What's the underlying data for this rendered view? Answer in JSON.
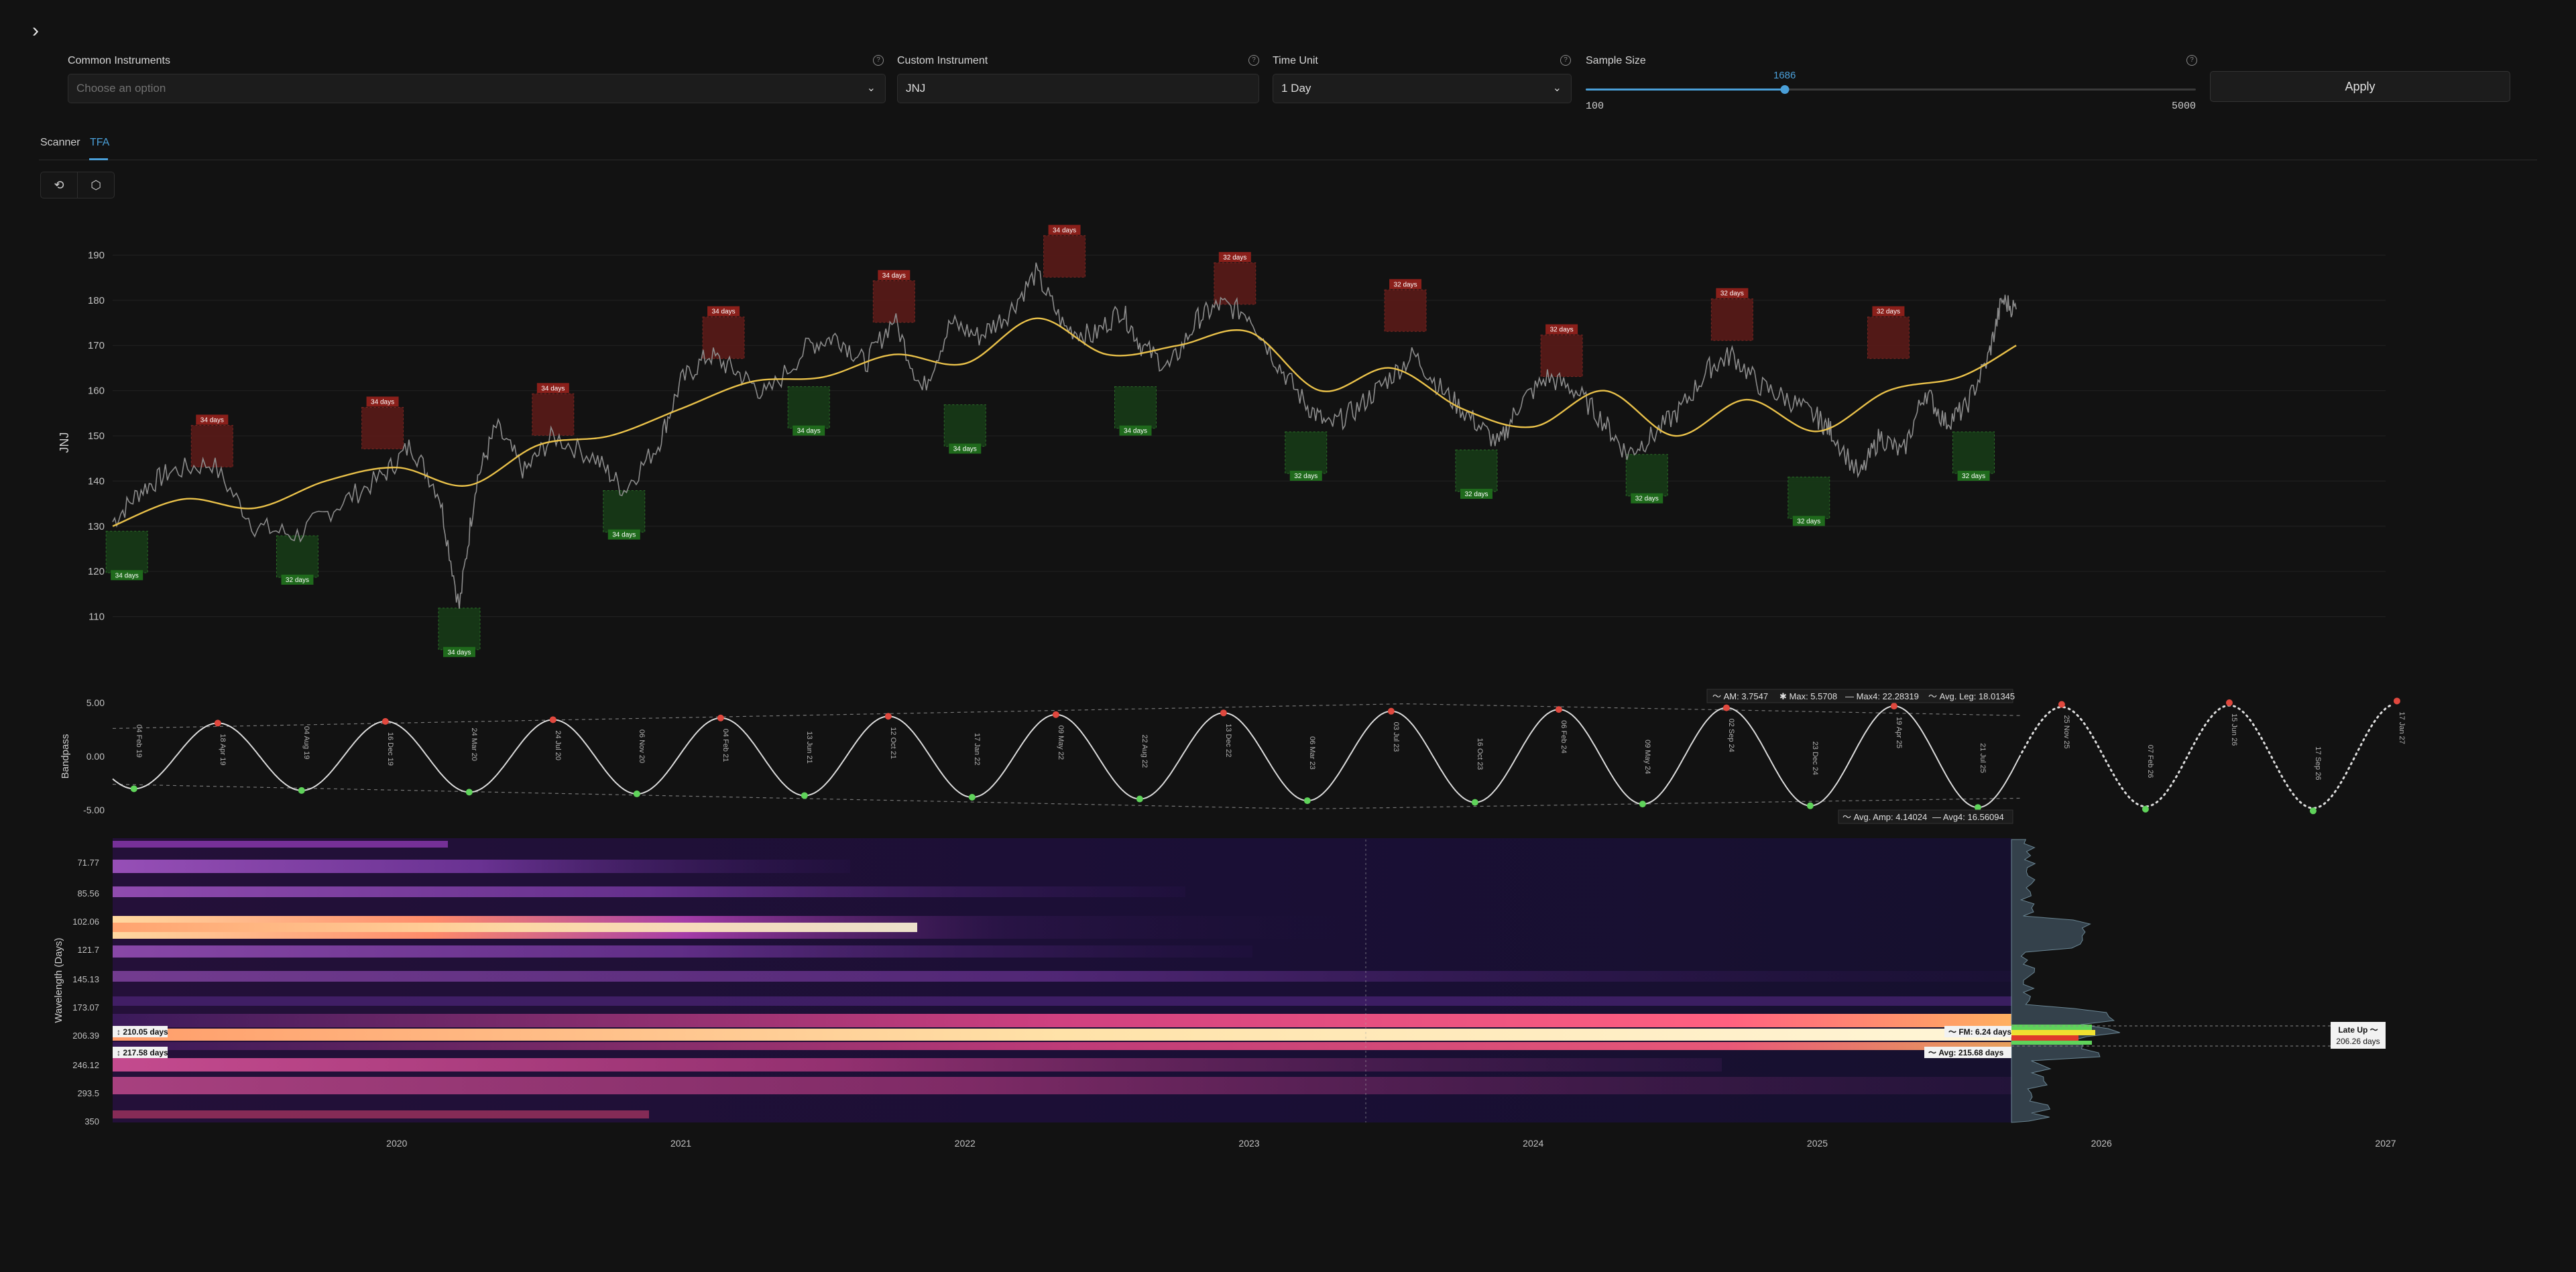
{
  "controls": {
    "common_instruments": {
      "label": "Common Instruments",
      "placeholder": "Choose an option"
    },
    "custom_instrument": {
      "label": "Custom Instrument",
      "value": "JNJ"
    },
    "time_unit": {
      "label": "Time Unit",
      "value": "1 Day"
    },
    "sample_size": {
      "label": "Sample Size",
      "value": "1686",
      "min": "100",
      "max": "5000",
      "fraction": 0.326
    },
    "apply_label": "Apply",
    "help_glyph": "?"
  },
  "tabs": [
    {
      "label": "Scanner",
      "active": false
    },
    {
      "label": "TFA",
      "active": true
    }
  ],
  "toolbar": [
    "refresh-icon",
    "cube-icon"
  ],
  "colors": {
    "accent": "#4a9fd8",
    "price": "#8c8c8c",
    "composite": "#e9c14a",
    "peak": "#e0483e",
    "trough": "#5fd35a",
    "background": "#121212"
  },
  "price_chart": {
    "ylabel": "JNJ",
    "y_ticks": [
      "190",
      "180",
      "170",
      "160",
      "150",
      "140",
      "130",
      "120",
      "110"
    ],
    "y_range": [
      104,
      196
    ],
    "x_range": [
      2019.0,
      2027.0
    ],
    "price_series": {
      "x": [
        2019.0,
        2019.1,
        2019.2,
        2019.35,
        2019.5,
        2019.65,
        2019.8,
        2019.95,
        2020.05,
        2020.15,
        2020.22,
        2020.28,
        2020.35,
        2020.45,
        2020.55,
        2020.7,
        2020.8,
        2020.92,
        2021.0,
        2021.1,
        2021.2,
        2021.3,
        2021.45,
        2021.55,
        2021.65,
        2021.75,
        2021.85,
        2021.95,
        2022.05,
        2022.15,
        2022.25,
        2022.35,
        2022.45,
        2022.55,
        2022.62,
        2022.72,
        2022.82,
        2022.9,
        2023.0,
        2023.1,
        2023.2,
        2023.28,
        2023.38,
        2023.48,
        2023.58,
        2023.68,
        2023.78,
        2023.88,
        2023.95,
        2024.05,
        2024.15,
        2024.25,
        2024.33,
        2024.42,
        2024.52,
        2024.62,
        2024.7,
        2024.8,
        2024.9,
        2025.0,
        2025.05,
        2025.15,
        2025.22,
        2025.3,
        2025.38,
        2025.45,
        2025.52,
        2025.6,
        2025.65,
        2025.7
      ],
      "y": [
        131,
        138,
        142,
        144,
        130,
        128,
        135,
        141,
        148,
        137,
        112,
        140,
        152,
        142,
        150,
        145,
        138,
        148,
        162,
        168,
        164,
        159,
        170,
        172,
        166,
        176,
        160,
        175,
        172,
        177,
        186,
        174,
        172,
        178,
        170,
        165,
        176,
        179,
        177,
        166,
        157,
        152,
        156,
        162,
        168,
        160,
        154,
        148,
        157,
        163,
        160,
        153,
        146,
        150,
        156,
        165,
        168,
        161,
        158,
        154,
        151,
        141,
        150,
        146,
        160,
        153,
        156,
        167,
        180,
        178
      ]
    },
    "composite": {
      "x": [
        2019.0,
        2019.25,
        2019.5,
        2019.75,
        2020.0,
        2020.25,
        2020.5,
        2020.75,
        2021.0,
        2021.25,
        2021.5,
        2021.75,
        2022.0,
        2022.25,
        2022.5,
        2022.75,
        2023.0,
        2023.25,
        2023.5,
        2023.75,
        2024.0,
        2024.25,
        2024.5,
        2024.75,
        2025.0,
        2025.25,
        2025.5,
        2025.7
      ],
      "y": [
        130,
        136,
        134,
        140,
        143,
        139,
        148,
        150,
        156,
        162,
        163,
        168,
        166,
        176,
        168,
        170,
        173,
        160,
        165,
        156,
        152,
        160,
        150,
        158,
        151,
        160,
        163,
        170
      ]
    },
    "cycle_markers": [
      {
        "type": "peak",
        "x": 2019.35,
        "y": 144,
        "label": "34 days"
      },
      {
        "type": "trough",
        "x": 2019.05,
        "y": 128,
        "label": "34 days"
      },
      {
        "type": "trough",
        "x": 2019.65,
        "y": 127,
        "label": "32 days"
      },
      {
        "type": "peak",
        "x": 2019.95,
        "y": 148,
        "label": "34 days"
      },
      {
        "type": "trough",
        "x": 2020.22,
        "y": 111,
        "label": "34 days"
      },
      {
        "type": "peak",
        "x": 2020.55,
        "y": 151,
        "label": "34 days"
      },
      {
        "type": "trough",
        "x": 2020.8,
        "y": 137,
        "label": "34 days"
      },
      {
        "type": "peak",
        "x": 2021.15,
        "y": 168,
        "label": "34 days"
      },
      {
        "type": "trough",
        "x": 2021.45,
        "y": 160,
        "label": "34 days"
      },
      {
        "type": "peak",
        "x": 2021.75,
        "y": 176,
        "label": "34 days"
      },
      {
        "type": "trough",
        "x": 2022.0,
        "y": 156,
        "label": "34 days"
      },
      {
        "type": "peak",
        "x": 2022.35,
        "y": 186,
        "label": "34 days"
      },
      {
        "type": "trough",
        "x": 2022.6,
        "y": 160,
        "label": "34 days"
      },
      {
        "type": "peak",
        "x": 2022.95,
        "y": 180,
        "label": "32 days"
      },
      {
        "type": "trough",
        "x": 2023.2,
        "y": 150,
        "label": "32 days"
      },
      {
        "type": "peak",
        "x": 2023.55,
        "y": 174,
        "label": "32 days"
      },
      {
        "type": "trough",
        "x": 2023.8,
        "y": 146,
        "label": "32 days"
      },
      {
        "type": "peak",
        "x": 2024.1,
        "y": 164,
        "label": "32 days"
      },
      {
        "type": "trough",
        "x": 2024.4,
        "y": 145,
        "label": "32 days"
      },
      {
        "type": "peak",
        "x": 2024.7,
        "y": 172,
        "label": "32 days"
      },
      {
        "type": "trough",
        "x": 2024.97,
        "y": 140,
        "label": "32 days"
      },
      {
        "type": "peak",
        "x": 2025.25,
        "y": 168,
        "label": "32 days"
      },
      {
        "type": "trough",
        "x": 2025.55,
        "y": 150,
        "label": "32 days"
      }
    ]
  },
  "bandpass": {
    "ylabel": "Bandpass",
    "y_ticks": [
      "5.00",
      "0.00",
      "-5.00"
    ],
    "wave": {
      "amplitude": 4.14,
      "period_years": 0.59,
      "phase_peak_x": 2019.37
    },
    "peak_labels": [
      "18 Apr 19",
      "16 Dec 19",
      "24 Jul 20",
      "04 Feb 21",
      "12 Oct 21",
      "09 May 22",
      "13 Dec 22",
      "03 Jul 23",
      "06 Feb 24",
      "02 Sep 24",
      "19 Apr 25",
      "25 Nov 25",
      "15 Jun 26",
      "17 Jan 27"
    ],
    "trough_labels": [
      "04 Feb 19",
      "04 Aug 19",
      "24 Mar 20",
      "06 Nov 20",
      "13 Jun 21",
      "17 Jan 22",
      "22 Aug 22",
      "06 Mar 23",
      "16 Oct 23",
      "09 May 24",
      "23 Dec 24",
      "21 Jul 25",
      "07 Feb 26",
      "17 Sep 26"
    ],
    "stats_top": [
      {
        "glyph": "〜",
        "label": "AM:",
        "value": "3.7547"
      },
      {
        "glyph": "✱",
        "label": "Max:",
        "value": "5.5708"
      },
      {
        "glyph": "—",
        "label": "Max4:",
        "value": "22.28319"
      },
      {
        "glyph": "〜",
        "label": "Avg. Leg:",
        "value": "18.01345"
      }
    ],
    "stats_bottom": [
      {
        "glyph": "〜",
        "label": "Avg. Amp:",
        "value": "4.14024"
      },
      {
        "glyph": "—",
        "label": "Avg4:",
        "value": "16.56094"
      }
    ]
  },
  "spectrogram": {
    "ylabel": "Wavelength (Days)",
    "y_ticks": [
      "71.77",
      "85.56",
      "102.06",
      "121.7",
      "145.13",
      "173.07",
      "206.39",
      "246.12",
      "293.5",
      "350"
    ],
    "x_ticks": [
      "2020",
      "2021",
      "2022",
      "2023",
      "2024",
      "2025",
      "2026",
      "2027"
    ],
    "left_labels": [
      "↕ 210.05 days",
      "↕ 217.58 days"
    ],
    "fm_label": "〜 FM: 6.24 days",
    "avg_label": "〜 Avg: 215.68 days",
    "phase_label": "Late Up 〜",
    "phase_value": "206.26 days"
  },
  "chart_data": [
    {
      "type": "line",
      "title": "",
      "ylabel": "JNJ",
      "ylim": [
        104,
        196
      ],
      "series": [
        {
          "values": [
            131,
            138,
            142,
            144,
            130,
            128,
            135,
            141,
            148,
            137,
            112,
            140,
            152,
            142,
            150,
            145,
            138,
            148,
            162,
            168,
            164,
            159,
            170,
            172,
            166,
            176,
            160,
            175,
            172,
            177,
            186,
            174,
            172,
            178,
            170,
            165,
            176,
            179,
            177,
            166,
            157,
            152,
            156,
            162,
            168,
            160,
            154,
            148,
            157,
            163,
            160,
            153,
            146,
            150,
            156,
            165,
            168,
            161,
            158,
            154,
            151,
            141,
            150,
            146,
            160,
            153,
            156,
            167,
            180,
            178
          ]
        },
        {
          "values": [
            130,
            136,
            134,
            140,
            143,
            139,
            148,
            150,
            156,
            162,
            163,
            168,
            166,
            176,
            168,
            170,
            173,
            160,
            165,
            156,
            152,
            160,
            150,
            158,
            151,
            160,
            163,
            170
          ]
        }
      ]
    },
    {
      "type": "line",
      "ylabel": "Bandpass",
      "ylim": [
        -5,
        5
      ],
      "series": [
        {
          "values": [
            0.0,
            4.1,
            -4.1
          ]
        }
      ]
    },
    {
      "type": "heatmap",
      "ylabel": "Wavelength (Days)",
      "y_categories": [
        "71.77",
        "85.56",
        "102.06",
        "121.7",
        "145.13",
        "173.07",
        "206.39",
        "246.12",
        "293.5",
        "350"
      ],
      "x_categories": [
        "2020",
        "2021",
        "2022",
        "2023",
        "2024",
        "2025",
        "2026",
        "2027"
      ],
      "dominant_bands_days": [
        210.05,
        217.58
      ]
    }
  ]
}
